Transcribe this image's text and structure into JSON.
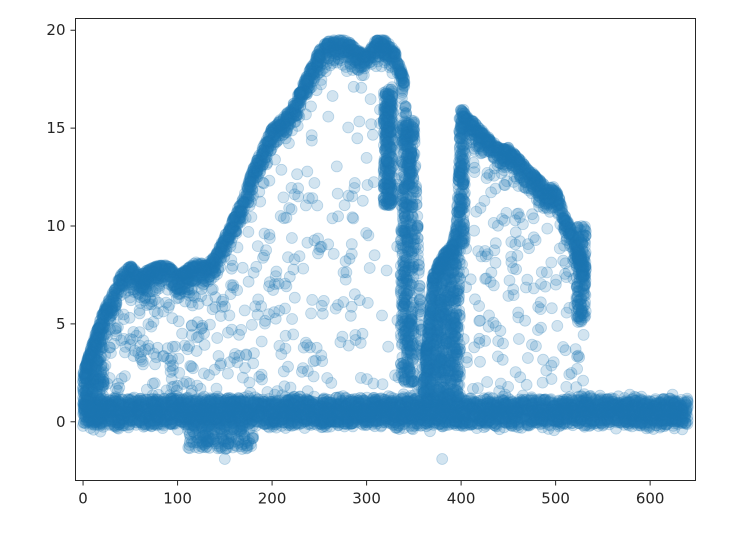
{
  "chart_data": {
    "type": "scatter",
    "title": "",
    "xlabel": "",
    "ylabel": "",
    "xlim": [
      -8,
      648
    ],
    "ylim": [
      -3,
      20.6
    ],
    "xticks": [
      0,
      100,
      200,
      300,
      400,
      500,
      600
    ],
    "yticks": [
      0,
      5,
      10,
      15,
      20
    ],
    "grid": false,
    "legend": "none",
    "marker": {
      "shape": "circle",
      "color": "#1f77b4",
      "alpha": 0.2
    },
    "series": [
      {
        "upper_envelope": {
          "x": [
            0,
            10,
            20,
            30,
            40,
            50,
            60,
            70,
            80,
            90,
            100,
            110,
            120,
            130,
            140,
            150,
            160,
            170,
            180,
            190,
            200,
            210,
            220,
            230,
            240,
            250,
            260,
            270,
            280,
            290,
            300,
            310,
            320,
            330,
            340,
            345,
            350,
            360,
            370,
            380,
            390,
            395,
            400,
            410,
            420,
            430,
            440,
            450,
            460,
            470,
            480,
            490,
            500,
            510,
            520,
            530
          ],
          "y": [
            2.5,
            4.0,
            5.5,
            6.5,
            7.5,
            8.0,
            7.5,
            7.8,
            8.0,
            8.0,
            7.5,
            7.8,
            8.2,
            8.0,
            8.5,
            9.5,
            10.5,
            11.5,
            13.0,
            14.0,
            15.0,
            15.5,
            16.0,
            17.0,
            18.0,
            19.0,
            19.5,
            19.5,
            19.5,
            19.0,
            18.8,
            19.5,
            19.5,
            19.0,
            17.5,
            13.0,
            15.5,
            2.0,
            7.5,
            8.5,
            9.0,
            10.0,
            16.0,
            15.5,
            15.0,
            14.5,
            14.0,
            14.0,
            13.5,
            13.0,
            12.5,
            12.0,
            12.0,
            10.5,
            9.5,
            8.0
          ]
        },
        "baseline": {
          "x_range": [
            0,
            640
          ],
          "y_center": 0.5,
          "y_spread": 1.2
        },
        "outlier_minimum": {
          "x": 150,
          "y": -1.9
        },
        "point_count_approx": 30000
      }
    ]
  }
}
